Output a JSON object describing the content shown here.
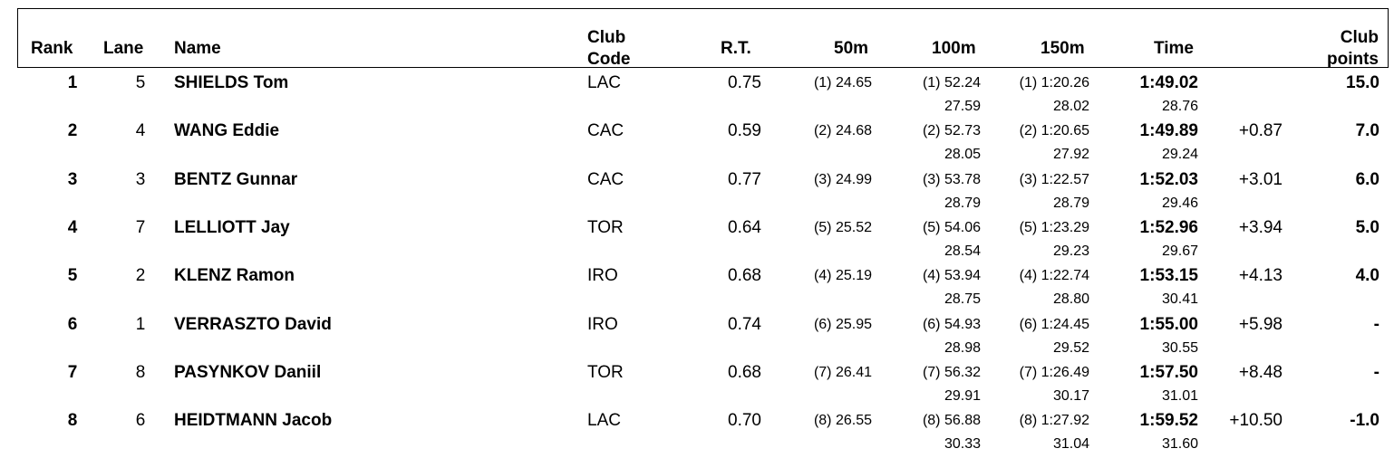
{
  "header": {
    "rank": "Rank",
    "lane": "Lane",
    "name": "Name",
    "club_code_1": "Club",
    "club_code_2": "Code",
    "rt": "R.T.",
    "s50": "50m",
    "s100": "100m",
    "s150": "150m",
    "time": "Time",
    "club_points_1": "Club",
    "club_points_2": "points"
  },
  "rows": [
    {
      "rank": "1",
      "lane": "5",
      "name": "SHIELDS Tom",
      "club": "LAC",
      "rt": "0.75",
      "s50": "(1) 24.65",
      "s100": "(1) 52.24",
      "s100_split": "27.59",
      "s150": "(1) 1:20.26",
      "s150_split": "28.02",
      "time": "1:49.02",
      "time_split": "28.76",
      "behind": "",
      "points": "15.0"
    },
    {
      "rank": "2",
      "lane": "4",
      "name": "WANG Eddie",
      "club": "CAC",
      "rt": "0.59",
      "s50": "(2) 24.68",
      "s100": "(2) 52.73",
      "s100_split": "28.05",
      "s150": "(2) 1:20.65",
      "s150_split": "27.92",
      "time": "1:49.89",
      "time_split": "29.24",
      "behind": "+0.87",
      "points": "7.0"
    },
    {
      "rank": "3",
      "lane": "3",
      "name": "BENTZ Gunnar",
      "club": "CAC",
      "rt": "0.77",
      "s50": "(3) 24.99",
      "s100": "(3) 53.78",
      "s100_split": "28.79",
      "s150": "(3) 1:22.57",
      "s150_split": "28.79",
      "time": "1:52.03",
      "time_split": "29.46",
      "behind": "+3.01",
      "points": "6.0"
    },
    {
      "rank": "4",
      "lane": "7",
      "name": "LELLIOTT Jay",
      "club": "TOR",
      "rt": "0.64",
      "s50": "(5) 25.52",
      "s100": "(5) 54.06",
      "s100_split": "28.54",
      "s150": "(5) 1:23.29",
      "s150_split": "29.23",
      "time": "1:52.96",
      "time_split": "29.67",
      "behind": "+3.94",
      "points": "5.0"
    },
    {
      "rank": "5",
      "lane": "2",
      "name": "KLENZ Ramon",
      "club": "IRO",
      "rt": "0.68",
      "s50": "(4) 25.19",
      "s100": "(4) 53.94",
      "s100_split": "28.75",
      "s150": "(4) 1:22.74",
      "s150_split": "28.80",
      "time": "1:53.15",
      "time_split": "30.41",
      "behind": "+4.13",
      "points": "4.0"
    },
    {
      "rank": "6",
      "lane": "1",
      "name": "VERRASZTO David",
      "club": "IRO",
      "rt": "0.74",
      "s50": "(6) 25.95",
      "s100": "(6) 54.93",
      "s100_split": "28.98",
      "s150": "(6) 1:24.45",
      "s150_split": "29.52",
      "time": "1:55.00",
      "time_split": "30.55",
      "behind": "+5.98",
      "points": "-"
    },
    {
      "rank": "7",
      "lane": "8",
      "name": "PASYNKOV Daniil",
      "club": "TOR",
      "rt": "0.68",
      "s50": "(7) 26.41",
      "s100": "(7) 56.32",
      "s100_split": "29.91",
      "s150": "(7) 1:26.49",
      "s150_split": "30.17",
      "time": "1:57.50",
      "time_split": "31.01",
      "behind": "+8.48",
      "points": "-"
    },
    {
      "rank": "8",
      "lane": "6",
      "name": "HEIDTMANN Jacob",
      "club": "LAC",
      "rt": "0.70",
      "s50": "(8) 26.55",
      "s100": "(8) 56.88",
      "s100_split": "30.33",
      "s150": "(8) 1:27.92",
      "s150_split": "31.04",
      "time": "1:59.52",
      "time_split": "31.60",
      "behind": "+10.50",
      "points": "-1.0"
    }
  ]
}
